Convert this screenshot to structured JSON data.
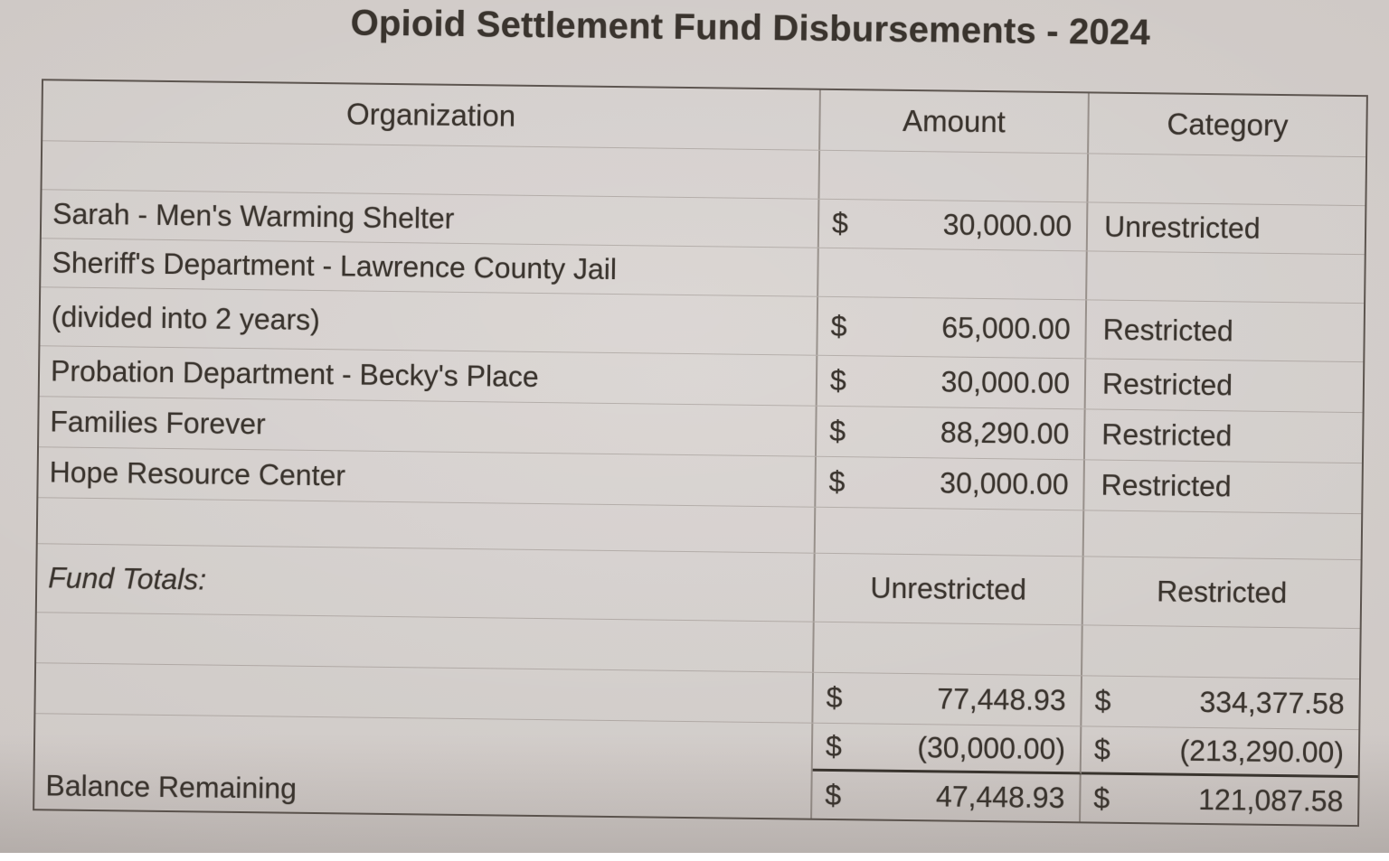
{
  "title": "Opioid Settlement Fund Disbursements - 2024",
  "currency_symbol": "$",
  "table": {
    "headers": {
      "organization": "Organization",
      "amount": "Amount",
      "category": "Category"
    },
    "rows": [
      {
        "organization": "Sarah - Men's Warming Shelter",
        "amount": "30,000.00",
        "category": "Unrestricted"
      },
      {
        "organization": "Sheriff's Department - Lawrence County Jail",
        "organization_line2": "(divided into 2 years)",
        "amount": "65,000.00",
        "category": "Restricted"
      },
      {
        "organization": "Probation Department - Becky's Place",
        "amount": "30,000.00",
        "category": "Restricted"
      },
      {
        "organization": "Families Forever",
        "amount": "88,290.00",
        "category": "Restricted"
      },
      {
        "organization": "Hope Resource Center",
        "amount": "30,000.00",
        "category": "Restricted"
      }
    ],
    "totals": {
      "label": "Fund Totals:",
      "column_headers": {
        "unrestricted": "Unrestricted",
        "restricted": "Restricted"
      },
      "rows": [
        {
          "unrestricted": "77,448.93",
          "restricted": "334,377.58"
        },
        {
          "unrestricted": "(30,000.00)",
          "restricted": "(213,290.00)"
        }
      ],
      "balance": {
        "label": "Balance Remaining",
        "unrestricted": "47,448.93",
        "restricted": "121,087.58"
      }
    }
  }
}
